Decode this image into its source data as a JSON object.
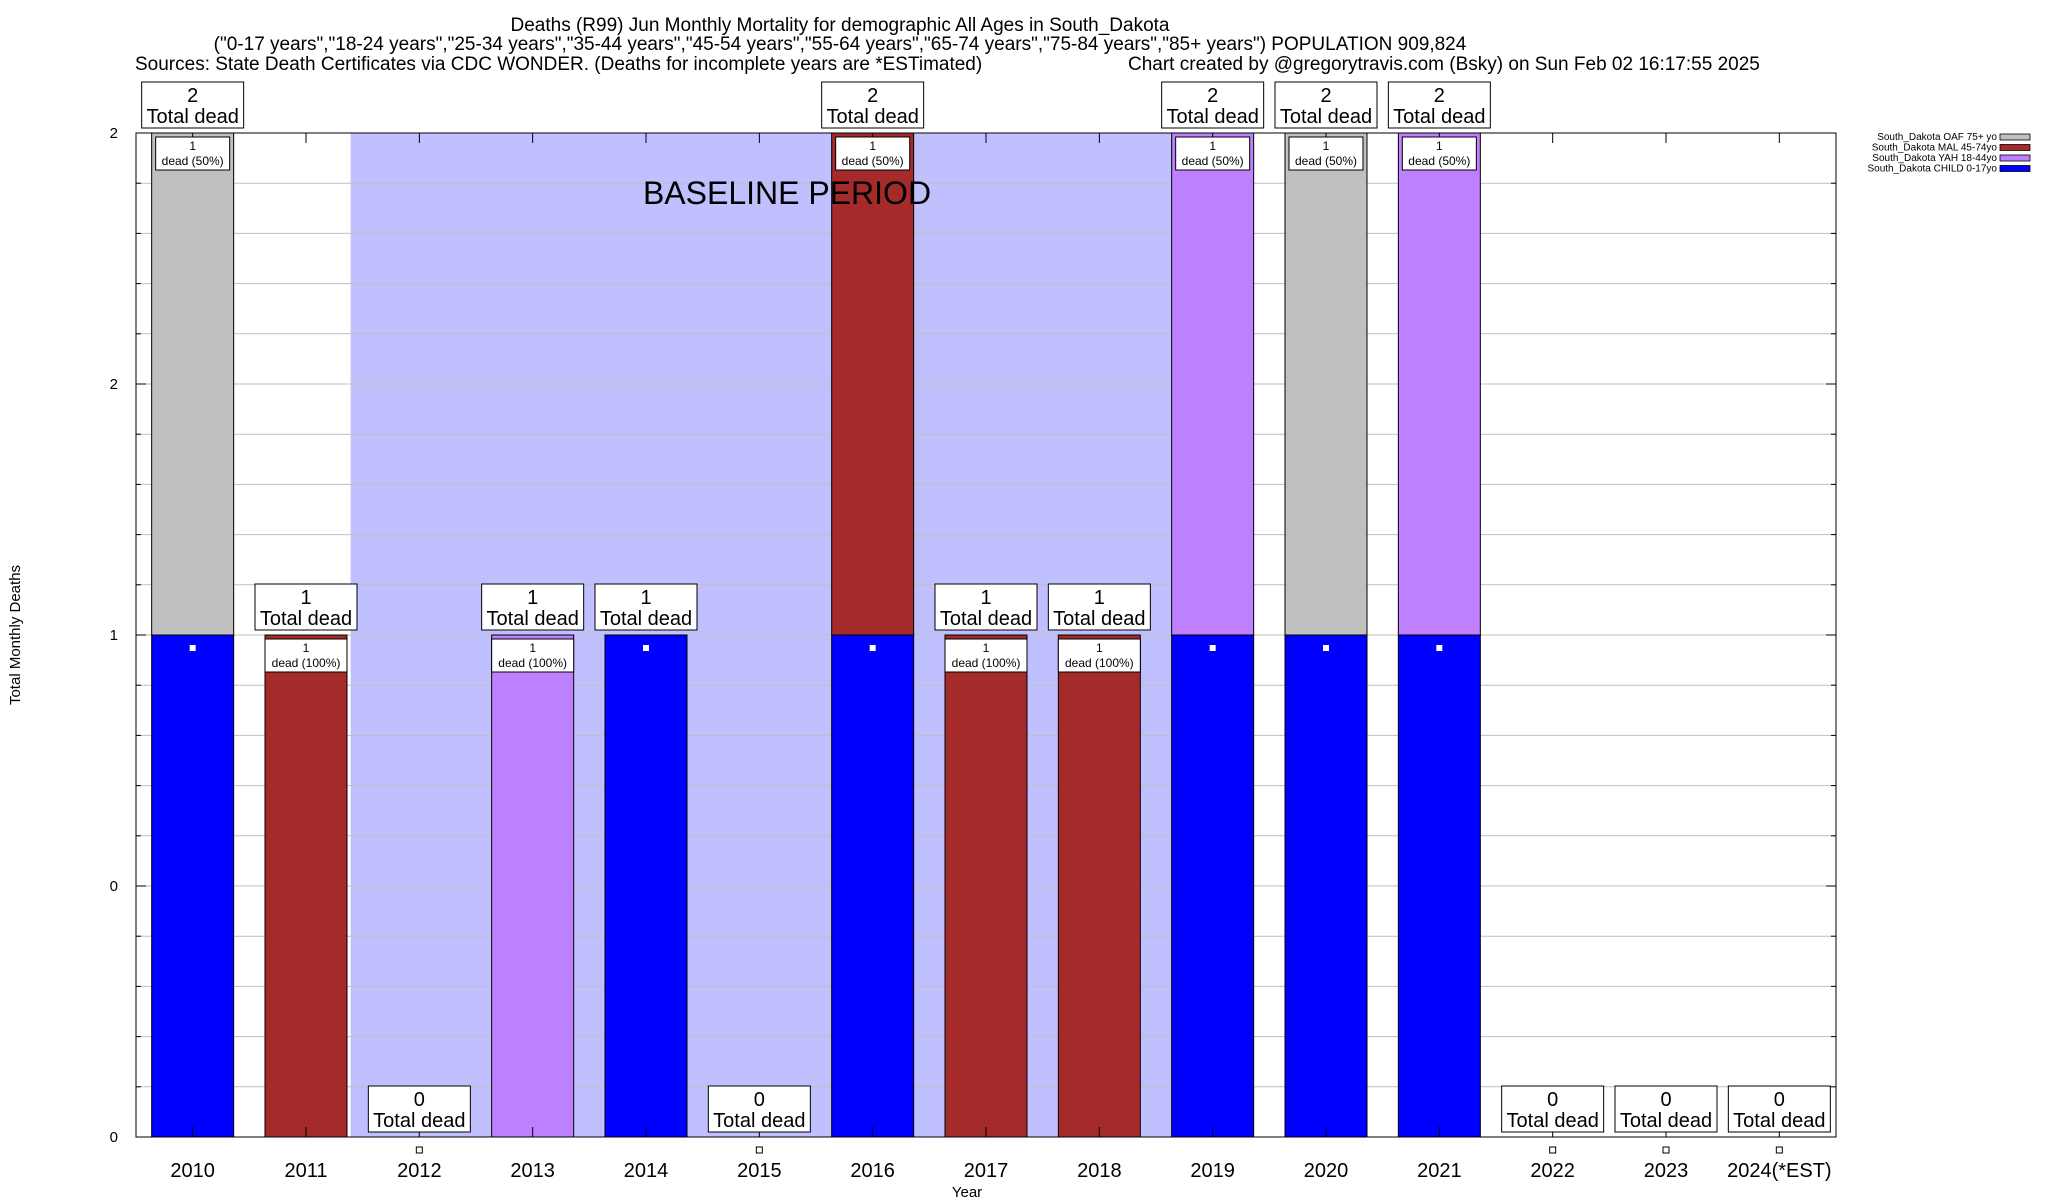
{
  "chart_data": {
    "type": "bar",
    "stacked": true,
    "title_lines": [
      "Deaths (R99) Jun Monthly Mortality for demographic All Ages in South_Dakota",
      "(\"0-17 years\",\"18-24 years\",\"25-34 years\",\"35-44 years\",\"45-54 years\",\"55-64 years\",\"65-74 years\",\"75-84 years\",\"85+ years\") POPULATION 909,824"
    ],
    "source_text": "Sources: State Death Certificates via CDC WONDER. (Deaths for incomplete years are *ESTimated)",
    "credit_text": "Chart created by @gregorytravis.com (Bsky) on Sun Feb 02 16:17:55 2025",
    "xlabel": "Year",
    "ylabel": "Total Monthly Deaths",
    "ylim": [
      0,
      2
    ],
    "y_tick_labels": [
      "0",
      "0",
      "1",
      "2",
      "2"
    ],
    "grid": true,
    "legend_position": "top-right",
    "categories": [
      "2010",
      "2011",
      "2012",
      "2013",
      "2014",
      "2015",
      "2016",
      "2017",
      "2018",
      "2019",
      "2020",
      "2021",
      "2022",
      "2023",
      "2024(*EST)"
    ],
    "series": [
      {
        "name": "South_Dakota CHILD 0-17yo",
        "color": "#0000ff",
        "values": [
          1,
          0,
          0,
          0,
          1,
          0,
          1,
          0,
          0,
          1,
          1,
          1,
          0,
          0,
          0
        ]
      },
      {
        "name": "South_Dakota YAH 18-44yo",
        "color": "#bf80ff",
        "values": [
          0,
          0,
          0,
          1,
          0,
          0,
          0,
          0,
          0,
          1,
          0,
          1,
          0,
          0,
          0
        ]
      },
      {
        "name": "South_Dakota MAL 45-74yo",
        "color": "#a52a2a",
        "values": [
          0,
          1,
          0,
          0,
          0,
          0,
          1,
          1,
          1,
          0,
          0,
          0,
          0,
          0,
          0
        ]
      },
      {
        "name": "South_Dakota OAF 75+ yo",
        "color": "#c0c0c0",
        "values": [
          1,
          0,
          0,
          0,
          0,
          0,
          0,
          0,
          0,
          0,
          1,
          0,
          0,
          0,
          0
        ]
      }
    ],
    "totals": [
      2,
      1,
      0,
      1,
      1,
      0,
      2,
      1,
      1,
      2,
      2,
      2,
      0,
      0,
      0
    ],
    "total_label_suffix": "Total dead",
    "segment_labels": [
      {
        "index": 0,
        "line1": "1",
        "line2": "dead (50%)"
      },
      {
        "index": 1,
        "line1": "1",
        "line2": "dead (100%)"
      },
      {
        "index": 3,
        "line1": "1",
        "line2": "dead (100%)"
      },
      {
        "index": 6,
        "line1": "1",
        "line2": "dead (50%)"
      },
      {
        "index": 7,
        "line1": "1",
        "line2": "dead (100%)"
      },
      {
        "index": 8,
        "line1": "1",
        "line2": "dead (100%)"
      },
      {
        "index": 9,
        "line1": "1",
        "line2": "dead (50%)"
      },
      {
        "index": 10,
        "line1": "1",
        "line2": "dead (50%)"
      },
      {
        "index": 11,
        "line1": "1",
        "line2": "dead (50%)"
      }
    ],
    "baseline_band": {
      "label": "BASELINE PERIOD",
      "color": "#c0c0ff"
    },
    "legend_order": [
      "South_Dakota OAF 75+ yo",
      "South_Dakota MAL 45-74yo",
      "South_Dakota YAH 18-44yo",
      "South_Dakota CHILD 0-17yo"
    ]
  }
}
